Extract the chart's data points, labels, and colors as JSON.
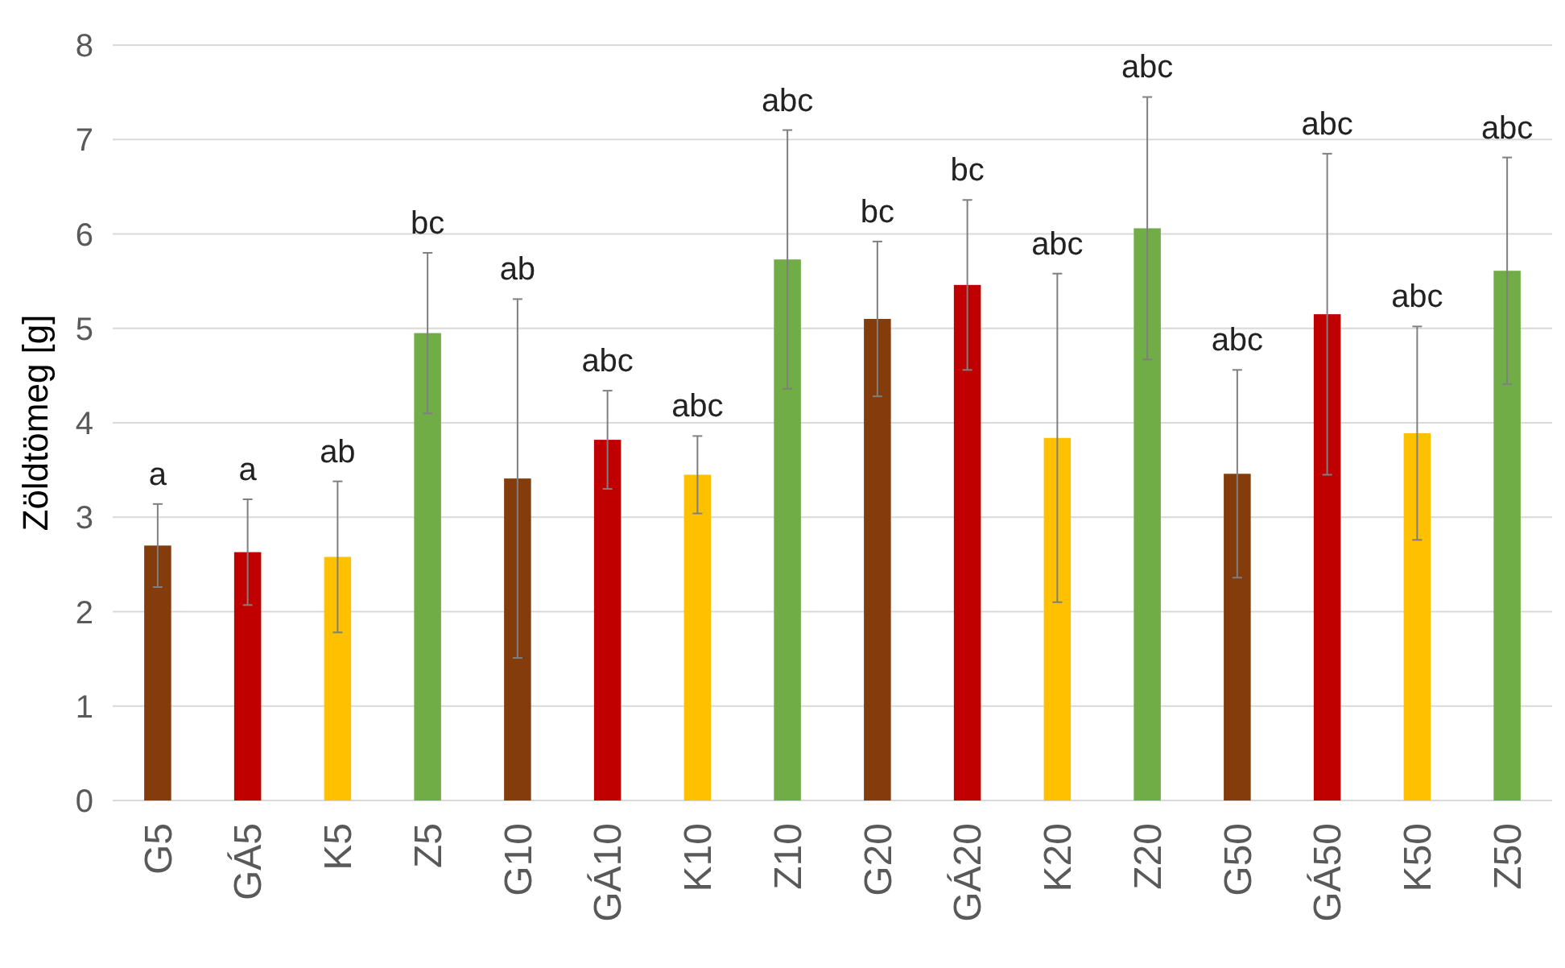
{
  "chart_data": {
    "type": "bar",
    "ylabel": "Zöldtömeg [g]",
    "categories": [
      "G5",
      "GÁ5",
      "K5",
      "Z5",
      "G10",
      "GÁ10",
      "K10",
      "Z10",
      "G20",
      "GÁ20",
      "K20",
      "Z20",
      "G50",
      "GÁ50",
      "K50",
      "Z50"
    ],
    "values": [
      2.7,
      2.63,
      2.58,
      4.95,
      3.41,
      3.82,
      3.45,
      5.73,
      5.1,
      5.46,
      3.84,
      6.06,
      3.46,
      5.15,
      3.89,
      5.61
    ],
    "errors": [
      0.44,
      0.56,
      0.8,
      0.85,
      1.9,
      0.52,
      0.41,
      1.37,
      0.82,
      0.9,
      1.74,
      1.39,
      1.1,
      1.7,
      1.13,
      1.2
    ],
    "colors": [
      "#843c0c",
      "#c00000",
      "#ffc000",
      "#70ad47",
      "#843c0c",
      "#c00000",
      "#ffc000",
      "#70ad47",
      "#843c0c",
      "#c00000",
      "#ffc000",
      "#70ad47",
      "#843c0c",
      "#c00000",
      "#ffc000",
      "#70ad47"
    ],
    "ylim": [
      0,
      8
    ],
    "yticks": [
      0,
      1,
      2,
      3,
      4,
      5,
      6,
      7,
      8
    ],
    "grid": "y",
    "annotations": [
      {
        "text": "a",
        "x": "G5",
        "y": 3.14
      },
      {
        "text": "a",
        "x": "GÁ5",
        "y": 3.19
      },
      {
        "text": "ab",
        "x": "K5",
        "y": 3.38
      },
      {
        "text": "bc",
        "x": "Z5",
        "y": 5.8
      },
      {
        "text": "ab",
        "x": "G10",
        "y": 5.31
      },
      {
        "text": "abc",
        "x": "GÁ10",
        "y": 4.34
      },
      {
        "text": "abc",
        "x": "K10",
        "y": 3.86
      },
      {
        "text": "abc",
        "x": "Z10",
        "y": 7.1
      },
      {
        "text": "bc",
        "x": "G20",
        "y": 5.92
      },
      {
        "text": "bc",
        "x": "GÁ20",
        "y": 6.36
      },
      {
        "text": "abc",
        "x": "K20",
        "y": 5.58
      },
      {
        "text": "abc",
        "x": "Z20",
        "y": 7.45
      },
      {
        "text": "abc",
        "x": "G50",
        "y": 4.56
      },
      {
        "text": "abc",
        "x": "GÁ50",
        "y": 6.85
      },
      {
        "text": "abc",
        "x": "K50",
        "y": 5.02
      },
      {
        "text": "abc",
        "x": "Z50",
        "y": 6.81
      }
    ]
  }
}
